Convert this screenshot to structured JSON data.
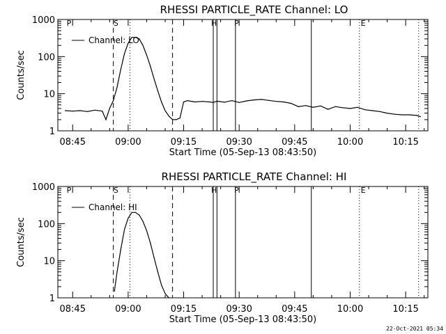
{
  "chart_data": [
    {
      "type": "line",
      "title": "RHESSI PARTICLE_RATE Channel: LO",
      "xlabel": "Start Time (05-Sep-13 08:43:50)",
      "ylabel": "Counts/sec",
      "yscale": "log",
      "ylim": [
        1,
        1000
      ],
      "xlim": [
        "08:41",
        "10:21"
      ],
      "x_ticks": [
        "08:45",
        "09:00",
        "09:15",
        "09:30",
        "09:45",
        "10:00",
        "10:15"
      ],
      "y_ticks": [
        "1",
        "10",
        "100",
        "1000"
      ],
      "legend": "top-left",
      "grid": false,
      "series": [
        {
          "name": "Channel: LO",
          "x": [
            "08:43",
            "08:45",
            "08:47",
            "08:49",
            "08:51",
            "08:53",
            "08:54",
            "08:55",
            "08:56",
            "08:57",
            "08:58",
            "08:59",
            "09:00",
            "09:01",
            "09:02",
            "09:03",
            "09:04",
            "09:05",
            "09:06",
            "09:07",
            "09:08",
            "09:09",
            "09:10",
            "09:11",
            "09:12",
            "09:13",
            "09:14",
            "09:15",
            "09:16",
            "09:18",
            "09:20",
            "09:22",
            "09:23",
            "09:24",
            "09:26",
            "09:28",
            "09:30",
            "09:32",
            "09:34",
            "09:36",
            "09:38",
            "09:40",
            "09:42",
            "09:44",
            "09:46",
            "09:48",
            "09:50",
            "09:52",
            "09:54",
            "09:56",
            "09:58",
            "10:00",
            "10:02",
            "10:04",
            "10:06",
            "10:08",
            "10:10",
            "10:12",
            "10:14",
            "10:16",
            "10:18",
            "10:19"
          ],
          "values": [
            3.5,
            3.4,
            3.5,
            3.3,
            3.6,
            3.4,
            2.0,
            4.0,
            6.5,
            15,
            45,
            120,
            230,
            330,
            330,
            300,
            200,
            110,
            55,
            25,
            12,
            6,
            3.5,
            2.5,
            2.0,
            2.0,
            2.2,
            6.0,
            6.5,
            6.0,
            6.2,
            6.0,
            5.8,
            6.3,
            5.9,
            6.5,
            5.8,
            6.4,
            6.8,
            7.0,
            6.6,
            6.2,
            6.0,
            5.5,
            4.5,
            4.8,
            4.3,
            4.7,
            3.8,
            4.5,
            4.2,
            4.0,
            4.3,
            3.7,
            3.5,
            3.3,
            3.0,
            2.8,
            2.7,
            2.7,
            2.6,
            2.4
          ]
        }
      ],
      "markers": {
        "dashed": [
          "08:56",
          "09:12"
        ],
        "dotted": [
          "09:00.5",
          "10:02.5",
          "10:18.5"
        ],
        "solid": [
          "09:23",
          "09:24",
          "09:29",
          "09:49.5"
        ],
        "top_labels": [
          {
            "at": "08:44",
            "text": "P"
          },
          {
            "at": "08:56.7",
            "text": "S"
          },
          {
            "at": "09:23.2",
            "text": "H"
          },
          {
            "at": "09:29.3",
            "text": "P"
          },
          {
            "at": "10:03.5",
            "text": "E"
          }
        ]
      }
    },
    {
      "type": "line",
      "title": "RHESSI PARTICLE_RATE Channel: HI",
      "xlabel": "Start Time (05-Sep-13 08:43:50)",
      "ylabel": "Counts/sec",
      "yscale": "log",
      "ylim": [
        1,
        1000
      ],
      "xlim": [
        "08:41",
        "10:21"
      ],
      "x_ticks": [
        "08:45",
        "09:00",
        "09:15",
        "09:30",
        "09:45",
        "10:00",
        "10:15"
      ],
      "y_ticks": [
        "1",
        "10",
        "100",
        "1000"
      ],
      "legend": "top-left",
      "grid": false,
      "series": [
        {
          "name": "Channel: HI",
          "x": [
            "08:56.3",
            "08:57",
            "08:58",
            "08:59",
            "09:00",
            "09:01",
            "09:02",
            "09:03",
            "09:04",
            "09:05",
            "09:06",
            "09:07",
            "09:08",
            "09:09",
            "09:10",
            "09:11"
          ],
          "values": [
            1.5,
            5,
            20,
            70,
            140,
            200,
            200,
            170,
            115,
            65,
            30,
            12,
            5,
            2.2,
            1.3,
            1.0
          ]
        }
      ],
      "markers": {
        "dashed": [
          "08:56",
          "09:12"
        ],
        "dotted": [
          "09:00.5",
          "10:02.5",
          "10:18.5"
        ],
        "solid": [
          "09:23",
          "09:24",
          "09:29",
          "09:49.5"
        ],
        "top_labels": [
          {
            "at": "08:44",
            "text": "P"
          },
          {
            "at": "08:56.7",
            "text": "S"
          },
          {
            "at": "09:23.2",
            "text": "H"
          },
          {
            "at": "09:29.3",
            "text": "P"
          },
          {
            "at": "10:03.5",
            "text": "E"
          }
        ]
      }
    }
  ],
  "footer": {
    "timestamp": "22-Oct-2021 05:34"
  },
  "colors": {
    "line": "#000000",
    "background": "#ffffff"
  }
}
